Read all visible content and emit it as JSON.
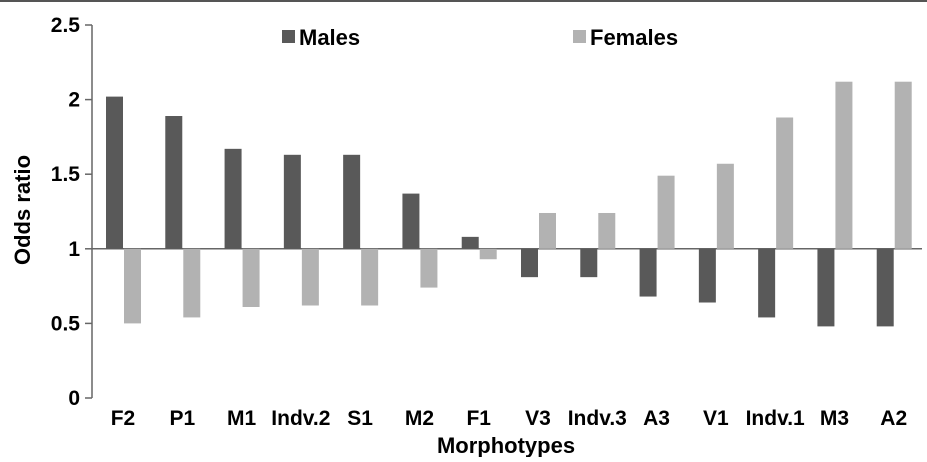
{
  "chart_data": {
    "type": "bar",
    "title": "",
    "xlabel": "Morphotypes",
    "ylabel": "Odds ratio",
    "baseline": 1,
    "ylim": [
      0,
      2.5
    ],
    "yticks": [
      "0",
      "0.5",
      "1",
      "1.5",
      "2",
      "2.5"
    ],
    "categories": [
      "F2",
      "P1",
      "M1",
      "Indv.2",
      "S1",
      "M2",
      "F1",
      "V3",
      "Indv.3",
      "A3",
      "V1",
      "Indv.1",
      "M3",
      "A2"
    ],
    "series": [
      {
        "name": "Males",
        "color": "#595959",
        "values": [
          2.02,
          1.89,
          1.67,
          1.63,
          1.63,
          1.37,
          1.08,
          0.81,
          0.81,
          0.68,
          0.64,
          0.54,
          0.48,
          0.48
        ]
      },
      {
        "name": "Females",
        "color": "#b2b2b2",
        "values": [
          0.5,
          0.54,
          0.61,
          0.62,
          0.62,
          0.74,
          0.93,
          1.24,
          1.24,
          1.49,
          1.57,
          1.88,
          2.12,
          2.12
        ]
      }
    ],
    "legend_position": "top",
    "grid": false
  }
}
